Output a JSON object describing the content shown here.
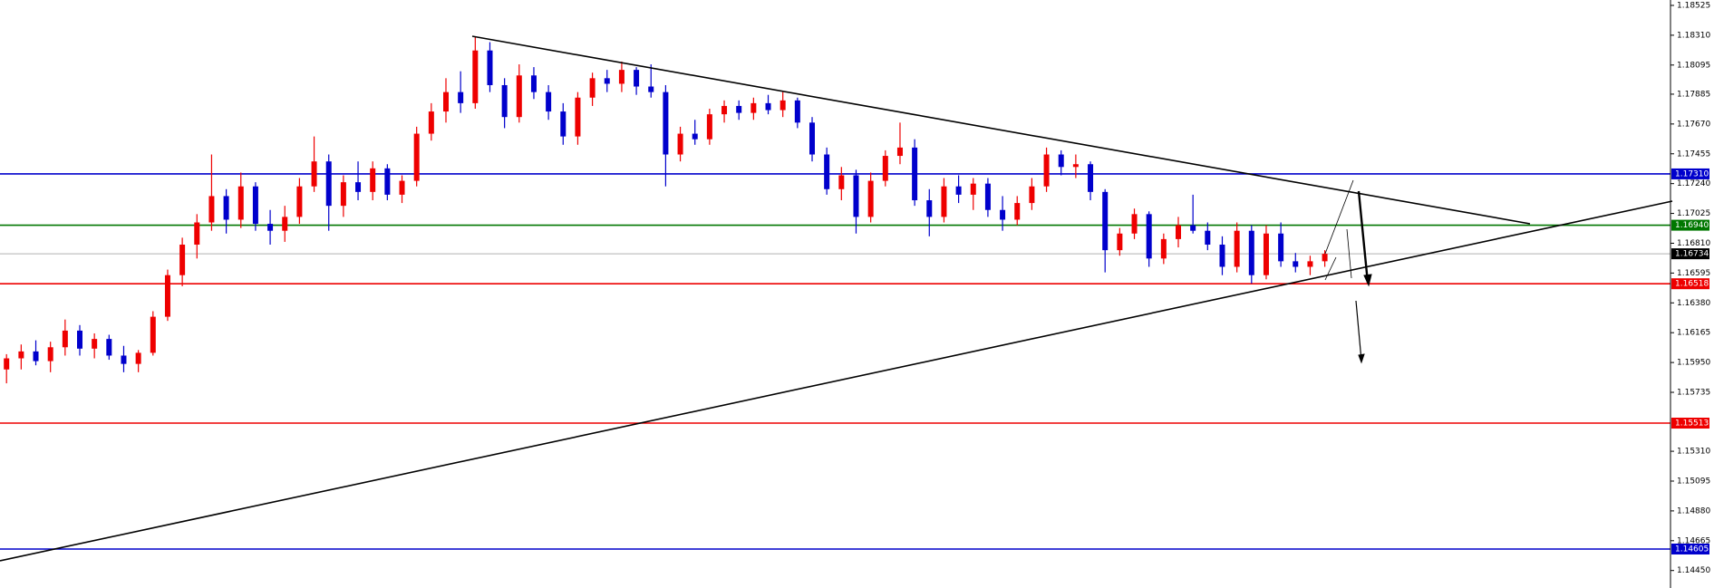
{
  "chart_data": {
    "type": "candlestick",
    "ylim": [
      1.14324,
      1.18564
    ],
    "yticks": [
      {
        "value": 1.18525,
        "label": "1.18525"
      },
      {
        "value": 1.1831,
        "label": "1.18310"
      },
      {
        "value": 1.18095,
        "label": "1.18095"
      },
      {
        "value": 1.17885,
        "label": "1.17885"
      },
      {
        "value": 1.1767,
        "label": "1.17670"
      },
      {
        "value": 1.17455,
        "label": "1.17455"
      },
      {
        "value": 1.1724,
        "label": "1.17240"
      },
      {
        "value": 1.17025,
        "label": "1.17025"
      },
      {
        "value": 1.1681,
        "label": "1.16810"
      },
      {
        "value": 1.16595,
        "label": "1.16595"
      },
      {
        "value": 1.1638,
        "label": "1.16380"
      },
      {
        "value": 1.16165,
        "label": "1.16165"
      },
      {
        "value": 1.1595,
        "label": "1.15950"
      },
      {
        "value": 1.15735,
        "label": "1.15735"
      },
      {
        "value": 1.1531,
        "label": "1.15310"
      },
      {
        "value": 1.15095,
        "label": "1.15095"
      },
      {
        "value": 1.1488,
        "label": "1.14880"
      },
      {
        "value": 1.14665,
        "label": "1.14665"
      },
      {
        "value": 1.1445,
        "label": "1.14450"
      }
    ],
    "levels": [
      {
        "value": 1.1731,
        "label": "1.17310",
        "color": "#0000cc"
      },
      {
        "value": 1.1694,
        "label": "1.16940",
        "color": "#007700"
      },
      {
        "value": 1.16734,
        "label": "1.16734",
        "color": "#b0b0b0"
      },
      {
        "value": 1.16518,
        "label": "1.16518",
        "color": "#ee0000"
      },
      {
        "value": 1.15513,
        "label": "1.15513",
        "color": "#ee0000"
      },
      {
        "value": 1.14605,
        "label": "1.14605",
        "color": "#0000cc"
      }
    ],
    "up_color": "#ee0000",
    "down_color": "#0000cc",
    "ohlc": [
      [
        1.159,
        1.1601,
        1.158,
        1.1598
      ],
      [
        1.1598,
        1.1608,
        1.159,
        1.1603
      ],
      [
        1.1603,
        1.1611,
        1.1593,
        1.1596
      ],
      [
        1.1596,
        1.161,
        1.1588,
        1.1606
      ],
      [
        1.1606,
        1.1626,
        1.16,
        1.1618
      ],
      [
        1.1618,
        1.1622,
        1.16,
        1.1605
      ],
      [
        1.1605,
        1.1616,
        1.1598,
        1.1612
      ],
      [
        1.1612,
        1.1615,
        1.1597,
        1.16
      ],
      [
        1.16,
        1.1607,
        1.1588,
        1.1594
      ],
      [
        1.1594,
        1.1604,
        1.1588,
        1.1602
      ],
      [
        1.1602,
        1.1632,
        1.16,
        1.1628
      ],
      [
        1.1628,
        1.1662,
        1.1625,
        1.1658
      ],
      [
        1.1658,
        1.1685,
        1.165,
        1.168
      ],
      [
        1.168,
        1.1702,
        1.167,
        1.1696
      ],
      [
        1.1696,
        1.1745,
        1.169,
        1.1715
      ],
      [
        1.1715,
        1.172,
        1.1688,
        1.1698
      ],
      [
        1.1698,
        1.1732,
        1.1692,
        1.1722
      ],
      [
        1.1722,
        1.1725,
        1.169,
        1.1695
      ],
      [
        1.1695,
        1.1705,
        1.168,
        1.169
      ],
      [
        1.169,
        1.1708,
        1.1682,
        1.17
      ],
      [
        1.17,
        1.1728,
        1.1695,
        1.1722
      ],
      [
        1.1722,
        1.1758,
        1.1718,
        1.174
      ],
      [
        1.174,
        1.1745,
        1.169,
        1.1708
      ],
      [
        1.1708,
        1.173,
        1.17,
        1.1725
      ],
      [
        1.1725,
        1.174,
        1.1712,
        1.1718
      ],
      [
        1.1718,
        1.174,
        1.1712,
        1.1735
      ],
      [
        1.1735,
        1.1738,
        1.1712,
        1.1716
      ],
      [
        1.1716,
        1.173,
        1.171,
        1.1726
      ],
      [
        1.1726,
        1.1765,
        1.1722,
        1.176
      ],
      [
        1.176,
        1.1782,
        1.1755,
        1.1776
      ],
      [
        1.1776,
        1.18,
        1.1768,
        1.179
      ],
      [
        1.179,
        1.1805,
        1.1775,
        1.1782
      ],
      [
        1.1782,
        1.183,
        1.1778,
        1.182
      ],
      [
        1.182,
        1.1826,
        1.179,
        1.1795
      ],
      [
        1.1795,
        1.18,
        1.1764,
        1.1772
      ],
      [
        1.1772,
        1.181,
        1.1768,
        1.1802
      ],
      [
        1.1802,
        1.1808,
        1.1785,
        1.179
      ],
      [
        1.179,
        1.1795,
        1.177,
        1.1776
      ],
      [
        1.1776,
        1.1782,
        1.1752,
        1.1758
      ],
      [
        1.1758,
        1.179,
        1.1752,
        1.1786
      ],
      [
        1.1786,
        1.1804,
        1.178,
        1.18
      ],
      [
        1.18,
        1.1806,
        1.179,
        1.1796
      ],
      [
        1.1796,
        1.1812,
        1.179,
        1.1806
      ],
      [
        1.1806,
        1.1808,
        1.1788,
        1.1794
      ],
      [
        1.1794,
        1.181,
        1.1786,
        1.179
      ],
      [
        1.179,
        1.1795,
        1.1722,
        1.1745
      ],
      [
        1.1745,
        1.1765,
        1.174,
        1.176
      ],
      [
        1.176,
        1.177,
        1.1752,
        1.1756
      ],
      [
        1.1756,
        1.1778,
        1.1752,
        1.1774
      ],
      [
        1.1774,
        1.1784,
        1.1768,
        1.178
      ],
      [
        1.178,
        1.1784,
        1.177,
        1.1775
      ],
      [
        1.1775,
        1.1786,
        1.177,
        1.1782
      ],
      [
        1.1782,
        1.1788,
        1.1774,
        1.1777
      ],
      [
        1.1777,
        1.179,
        1.1772,
        1.1784
      ],
      [
        1.1784,
        1.1786,
        1.1764,
        1.1768
      ],
      [
        1.1768,
        1.1772,
        1.174,
        1.1745
      ],
      [
        1.1745,
        1.175,
        1.1716,
        1.172
      ],
      [
        1.172,
        1.1736,
        1.1712,
        1.173
      ],
      [
        1.173,
        1.1734,
        1.1688,
        1.17
      ],
      [
        1.17,
        1.1732,
        1.1696,
        1.1726
      ],
      [
        1.1726,
        1.1748,
        1.1722,
        1.1744
      ],
      [
        1.1744,
        1.1768,
        1.1738,
        1.175
      ],
      [
        1.175,
        1.1756,
        1.1708,
        1.1712
      ],
      [
        1.1712,
        1.172,
        1.1686,
        1.17
      ],
      [
        1.17,
        1.1728,
        1.1696,
        1.1722
      ],
      [
        1.1722,
        1.173,
        1.171,
        1.1716
      ],
      [
        1.1716,
        1.1728,
        1.1705,
        1.1724
      ],
      [
        1.1724,
        1.1728,
        1.17,
        1.1705
      ],
      [
        1.1705,
        1.1715,
        1.169,
        1.1698
      ],
      [
        1.1698,
        1.1715,
        1.1694,
        1.171
      ],
      [
        1.171,
        1.1728,
        1.1705,
        1.1722
      ],
      [
        1.1722,
        1.175,
        1.1718,
        1.1745
      ],
      [
        1.1745,
        1.1748,
        1.173,
        1.1736
      ],
      [
        1.1736,
        1.1745,
        1.1728,
        1.1738
      ],
      [
        1.1738,
        1.174,
        1.1712,
        1.1718
      ],
      [
        1.1718,
        1.172,
        1.166,
        1.1676
      ],
      [
        1.1676,
        1.1692,
        1.1672,
        1.1688
      ],
      [
        1.1688,
        1.1706,
        1.1684,
        1.1702
      ],
      [
        1.1702,
        1.1704,
        1.1664,
        1.167
      ],
      [
        1.167,
        1.1688,
        1.1666,
        1.1684
      ],
      [
        1.1684,
        1.17,
        1.1678,
        1.1694
      ],
      [
        1.1694,
        1.1716,
        1.1688,
        1.169
      ],
      [
        1.169,
        1.1696,
        1.1676,
        1.168
      ],
      [
        1.168,
        1.1686,
        1.1658,
        1.1664
      ],
      [
        1.1664,
        1.1696,
        1.166,
        1.169
      ],
      [
        1.169,
        1.1694,
        1.1652,
        1.1658
      ],
      [
        1.1658,
        1.1694,
        1.1655,
        1.1688
      ],
      [
        1.1688,
        1.1696,
        1.1664,
        1.1668
      ],
      [
        1.1668,
        1.1674,
        1.166,
        1.1664
      ],
      [
        1.1664,
        1.1672,
        1.1658,
        1.1668
      ],
      [
        1.1668,
        1.1676,
        1.1664,
        1.16734
      ]
    ]
  }
}
